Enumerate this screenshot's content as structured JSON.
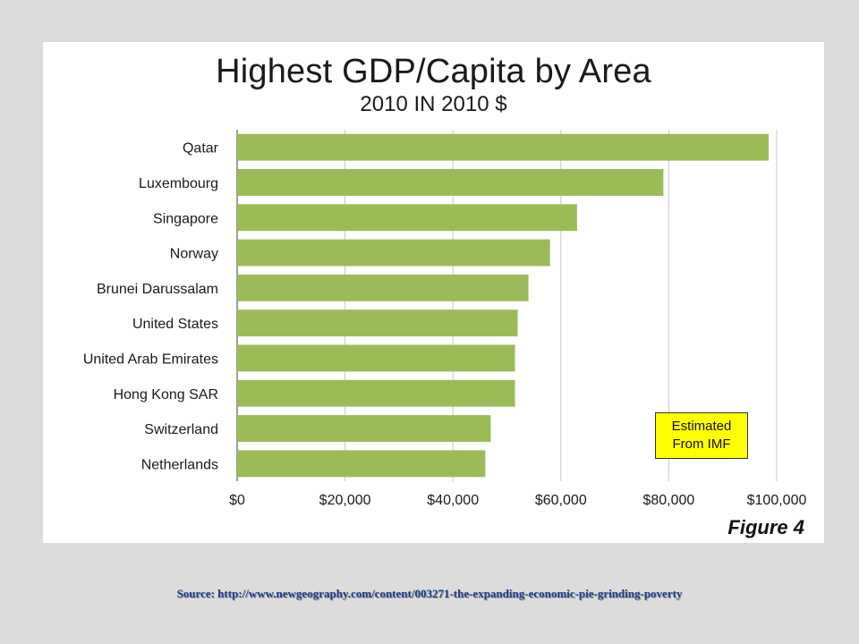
{
  "chart_data": {
    "type": "bar",
    "orientation": "horizontal",
    "title": "Highest GDP/Capita by Area",
    "subtitle": "2010 IN 2010 $",
    "categories": [
      "Qatar",
      "Luxembourg",
      "Singapore",
      "Norway",
      "Brunei Darussalam",
      "United States",
      "United Arab Emirates",
      "Hong Kong SAR",
      "Switzerland",
      "Netherlands"
    ],
    "values": [
      98500,
      79000,
      63000,
      58000,
      54000,
      52000,
      51500,
      51500,
      47000,
      46000
    ],
    "xlim": [
      0,
      100000
    ],
    "x_ticks": [
      0,
      20000,
      40000,
      60000,
      80000,
      100000
    ],
    "x_tick_labels": [
      "$0",
      "$20,000",
      "$40,000",
      "$60,000",
      "$80,000",
      "$100,000"
    ],
    "grid": true,
    "bar_color": "#9bbb59",
    "annotation": "Estimated From IMF",
    "figure_label": "Figure 4"
  },
  "note": {
    "line1": "Estimated",
    "line2": "From IMF"
  },
  "source": "Source:  http://www.newgeography.com/content/003271-the-expanding-economic-pie-grinding-poverty"
}
